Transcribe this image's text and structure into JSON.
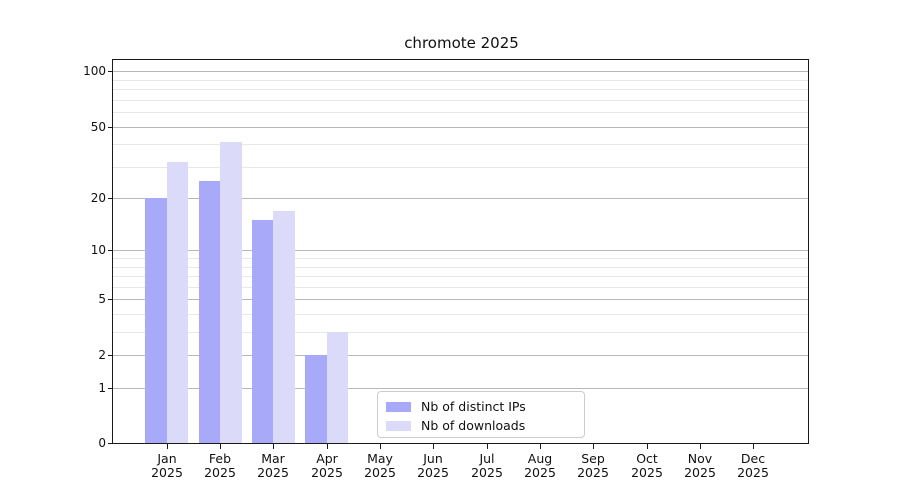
{
  "chart_data": {
    "type": "bar",
    "title": "chromote 2025",
    "categories": [
      "Jan 2025",
      "Feb 2025",
      "Mar 2025",
      "Apr 2025",
      "May 2025",
      "Jun 2025",
      "Jul 2025",
      "Aug 2025",
      "Sep 2025",
      "Oct 2025",
      "Nov 2025",
      "Dec 2025"
    ],
    "series": [
      {
        "name": "Nb of distinct IPs",
        "color": "#a9a9fa",
        "values": [
          20,
          25,
          15,
          2,
          0,
          0,
          0,
          0,
          0,
          0,
          0,
          0
        ]
      },
      {
        "name": "Nb of downloads",
        "color": "#dbdbf9",
        "values": [
          32,
          41,
          17,
          3,
          0,
          0,
          0,
          0,
          0,
          0,
          0,
          0
        ]
      }
    ],
    "xlabel": "",
    "ylabel": "",
    "yscale": "log1p",
    "ylim": [
      0,
      116
    ],
    "yticks_major": [
      0,
      1,
      2,
      5,
      10,
      20,
      50,
      100
    ],
    "yticks_minor": [
      3,
      4,
      6,
      7,
      8,
      9,
      30,
      40,
      60,
      70,
      80,
      90
    ],
    "grid": true,
    "legend_position": "lower center"
  }
}
